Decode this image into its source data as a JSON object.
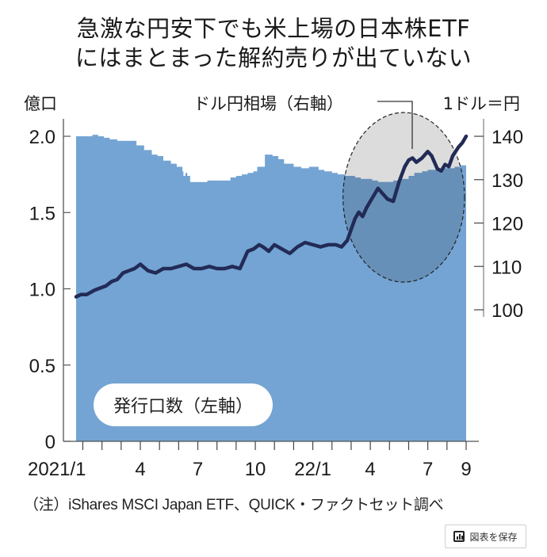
{
  "title": {
    "line1": "急激な円安下でも米上場の日本株ETF",
    "line2": "にはまとまった解約売りが出ていない"
  },
  "colors": {
    "area_fill": "#74a4d3",
    "area_fill_highlight": "#6790b8",
    "highlight_bg": "#dcdcdc",
    "line": "#222b56",
    "axis": "#555555"
  },
  "chart_data": {
    "type": "area+line",
    "title": "急激な円安下でも米上場の日本株ETFにはまとまった解約売りが出ていない",
    "left_axis": {
      "unit_label": "億口",
      "ticks": [
        "0",
        "0.5",
        "1.0",
        "1.5",
        "2.0"
      ],
      "tick_values": [
        0,
        0.5,
        1.0,
        1.5,
        2.0
      ],
      "ylim": [
        0,
        2.0
      ]
    },
    "right_axis": {
      "unit_label": "1ドル＝円",
      "ticks": [
        "100",
        "110",
        "120",
        "130",
        "140"
      ],
      "tick_values": [
        100,
        110,
        120,
        130,
        140
      ],
      "ylim": [
        100,
        140
      ]
    },
    "x_axis": {
      "tick_labels": [
        "2021/1",
        "4",
        "7",
        "10",
        "22/1",
        "4",
        "7",
        "9"
      ],
      "tick_label_months": [
        0,
        3,
        6,
        9,
        12,
        15,
        18,
        20
      ],
      "range_months": [
        -0.35,
        20.0
      ]
    },
    "series": [
      {
        "name": "発行口数（左軸）",
        "type": "area",
        "axis": "left",
        "x_months": [
          -0.35,
          0.2,
          0.5,
          0.8,
          1.1,
          1.4,
          1.8,
          2.3,
          2.8,
          3.2,
          3.6,
          3.9,
          4.2,
          4.6,
          4.9,
          5.2,
          5.25,
          5.35,
          5.45,
          5.6,
          6.2,
          6.5,
          7.3,
          7.7,
          8.0,
          8.3,
          8.6,
          8.9,
          9.1,
          9.5,
          9.7,
          9.9,
          10.2,
          10.5,
          11.0,
          11.4,
          11.8,
          12.3,
          12.6,
          13.0,
          13.3,
          13.7,
          14.0,
          14.2,
          14.5,
          14.8,
          15.1,
          15.4,
          15.8,
          16.2,
          16.6,
          17.0,
          17.3,
          17.7,
          18.0,
          18.3,
          18.7,
          19.0,
          19.4,
          19.7,
          20.0
        ],
        "values": [
          2.0,
          2.0,
          2.01,
          2.0,
          1.99,
          1.98,
          1.97,
          1.97,
          1.94,
          1.91,
          1.88,
          1.87,
          1.84,
          1.82,
          1.8,
          1.77,
          1.74,
          1.76,
          1.74,
          1.7,
          1.7,
          1.71,
          1.71,
          1.73,
          1.74,
          1.75,
          1.76,
          1.77,
          1.8,
          1.88,
          1.88,
          1.87,
          1.85,
          1.82,
          1.8,
          1.79,
          1.8,
          1.78,
          1.77,
          1.76,
          1.75,
          1.74,
          1.74,
          1.73,
          1.72,
          1.72,
          1.71,
          1.7,
          1.7,
          1.71,
          1.72,
          1.74,
          1.76,
          1.77,
          1.78,
          1.78,
          1.79,
          1.79,
          1.8,
          1.81,
          1.81
        ]
      },
      {
        "name": "ドル円相場（右軸）",
        "type": "line",
        "axis": "right",
        "x_months": [
          -0.35,
          -0.1,
          0.2,
          0.6,
          0.9,
          1.2,
          1.5,
          1.8,
          2.1,
          2.4,
          2.7,
          3.0,
          3.4,
          3.8,
          4.2,
          4.6,
          5.0,
          5.4,
          5.8,
          6.2,
          6.6,
          7.0,
          7.4,
          7.8,
          8.2,
          8.6,
          8.9,
          9.2,
          9.4,
          9.7,
          10.0,
          10.4,
          10.8,
          11.2,
          11.6,
          12.0,
          12.4,
          12.8,
          13.2,
          13.5,
          13.8,
          14.0,
          14.2,
          14.4,
          14.6,
          14.8,
          15.0,
          15.2,
          15.4,
          15.6,
          15.9,
          16.2,
          16.5,
          16.8,
          17.0,
          17.2,
          17.4,
          17.7,
          18.0,
          18.2,
          18.5,
          18.7,
          18.9,
          19.1,
          19.3,
          19.6,
          19.8,
          20.0
        ],
        "values": [
          103.0,
          103.5,
          103.5,
          104.5,
          105.0,
          105.5,
          106.5,
          107.0,
          108.5,
          109.0,
          109.5,
          110.5,
          109.0,
          108.5,
          109.5,
          109.5,
          110.0,
          110.5,
          109.5,
          109.5,
          110.0,
          109.5,
          109.5,
          110.0,
          109.5,
          113.5,
          114.0,
          115.0,
          114.5,
          113.5,
          115.0,
          114.0,
          113.0,
          114.5,
          115.5,
          115.0,
          114.5,
          115.0,
          115.0,
          114.5,
          116.0,
          118.5,
          121.0,
          122.5,
          121.5,
          123.5,
          125.0,
          126.5,
          128.0,
          127.0,
          125.5,
          125.0,
          129.5,
          133.0,
          134.5,
          135.0,
          134.0,
          135.0,
          136.5,
          135.5,
          132.5,
          132.0,
          133.5,
          133.0,
          135.5,
          137.5,
          138.5,
          140.0
        ]
      }
    ],
    "annotations": [
      {
        "type": "callout",
        "text": "ドル円相場（右軸）"
      },
      {
        "type": "label",
        "text": "発行口数（左軸）"
      },
      {
        "type": "highlight-ellipse",
        "x_months_range": [
          13.7,
          20.0
        ]
      }
    ],
    "grid": false,
    "legend": "inline"
  },
  "labels": {
    "line_callout": "ドル円相場（右軸）",
    "area_label": "発行口数（左軸）"
  },
  "note": "（注）iShares MSCI Japan ETF、QUICK・ファクトセット調べ",
  "save_button": {
    "label": "図表を保存",
    "icon": "bar-chart-icon"
  }
}
